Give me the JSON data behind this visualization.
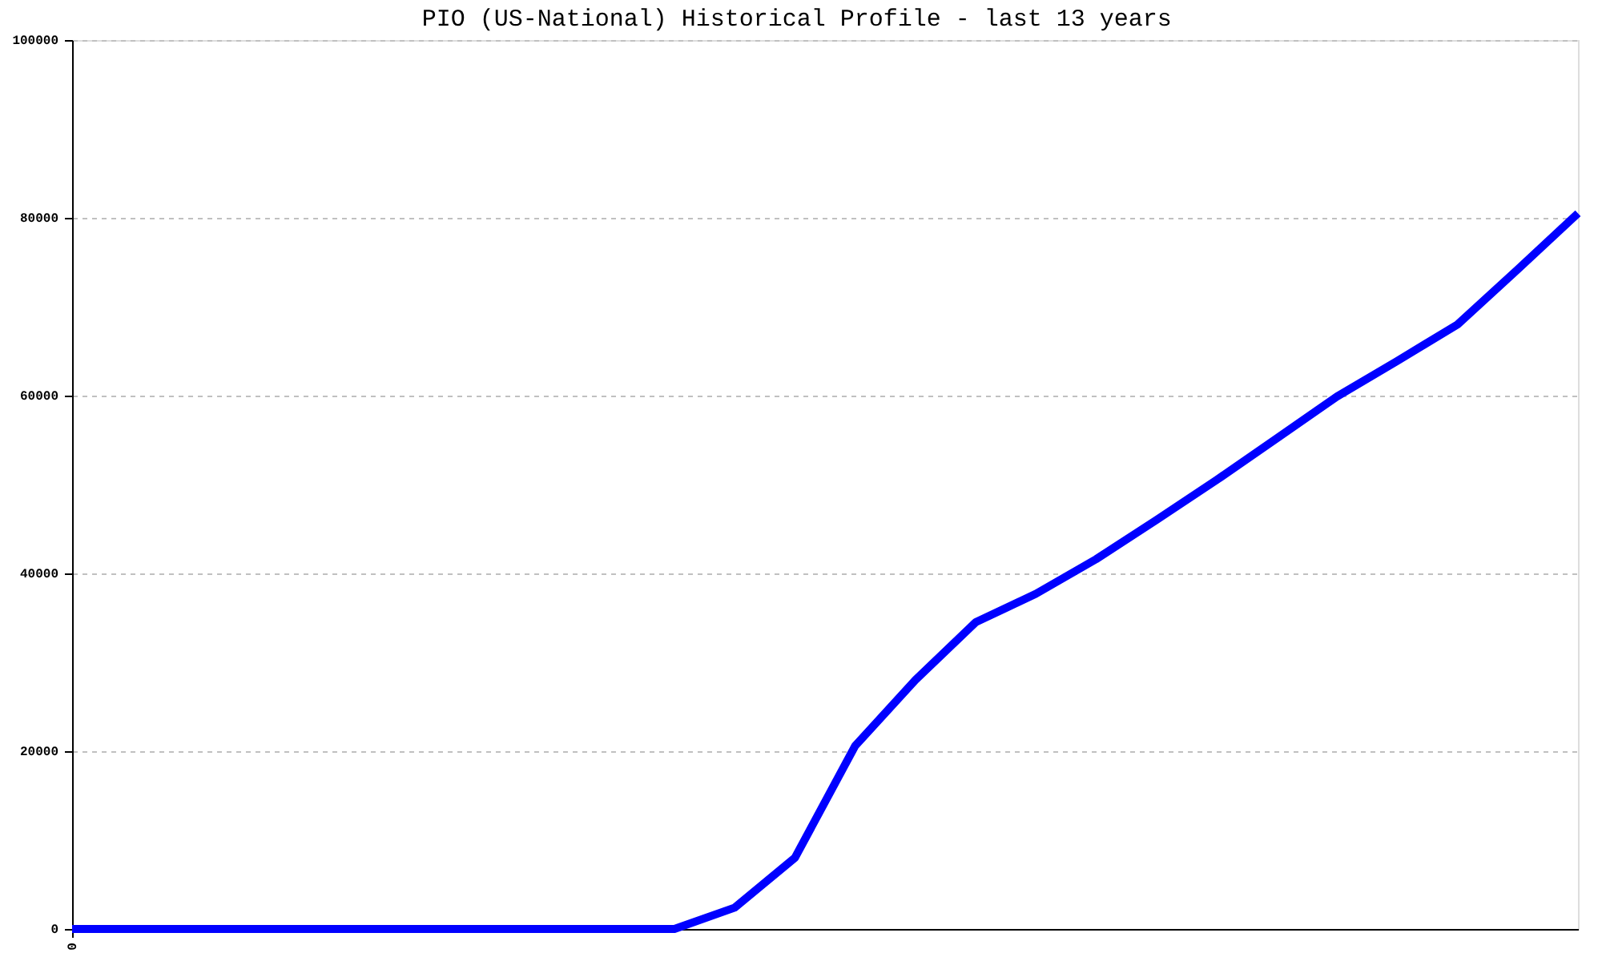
{
  "chart_data": {
    "type": "line",
    "title": "PIO (US-National) Historical Profile - last 13 years",
    "categories": [
      "0",
      null,
      null,
      null,
      null,
      null,
      null,
      null,
      null,
      null,
      null,
      null,
      null,
      null,
      null,
      null,
      null,
      null,
      null,
      null,
      null,
      null,
      null,
      null,
      null,
      null
    ],
    "series": [
      {
        "color": "#0000ff",
        "values": [
          0,
          0,
          0,
          0,
          0,
          0,
          0,
          0,
          0,
          0,
          0,
          2400,
          8000,
          20600,
          28000,
          34500,
          37700,
          41600,
          46000,
          50500,
          55200,
          59900,
          63900,
          68000,
          74200,
          80500
        ]
      }
    ],
    "ylim": [
      0,
      100000
    ],
    "yticks": [
      0,
      20000,
      40000,
      60000,
      80000,
      100000
    ],
    "grid": "y",
    "line_style": "solid"
  }
}
